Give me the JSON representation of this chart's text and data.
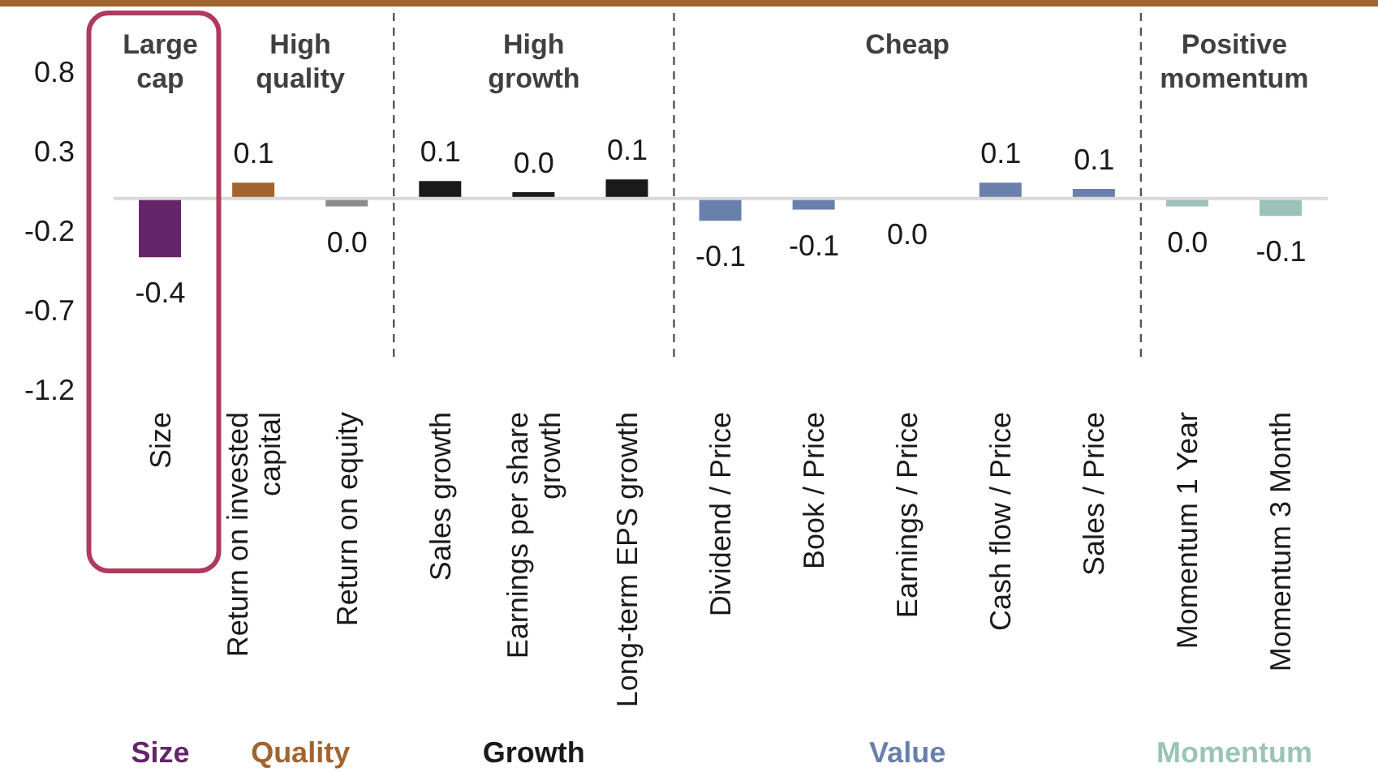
{
  "chart_data": {
    "type": "bar",
    "stacked": true,
    "categories": [
      "Size",
      "Return on invested capital",
      "Return on equity",
      "Sales growth",
      "Earnings per share growth",
      "Long-term EPS growth",
      "Dividend / Price",
      "Book / Price",
      "Earnings / Price",
      "Cash flow / Price",
      "Sales / Price",
      "Momentum 1 Year",
      "Momentum 3 Month"
    ],
    "series": [
      {
        "name": "Size",
        "color": "#66246a",
        "values": [
          -0.37,
          null,
          null,
          null,
          null,
          null,
          null,
          null,
          null,
          null,
          null,
          null,
          null
        ],
        "value_labels": [
          "-0.4",
          null,
          null,
          null,
          null,
          null,
          null,
          null,
          null,
          null,
          null,
          null,
          null
        ]
      },
      {
        "name": "Quality",
        "color": "#a2652f",
        "colors": [
          null,
          "#a2652f",
          "#8c8c8c",
          null,
          null,
          null,
          null,
          null,
          null,
          null,
          null,
          null,
          null
        ],
        "values": [
          null,
          0.1,
          -0.05,
          null,
          null,
          null,
          null,
          null,
          null,
          null,
          null,
          null,
          null
        ],
        "value_labels": [
          null,
          "0.1",
          "0.0",
          null,
          null,
          null,
          null,
          null,
          null,
          null,
          null,
          null,
          null
        ]
      },
      {
        "name": "Growth",
        "color": "#1a1a1a",
        "values": [
          null,
          null,
          null,
          0.11,
          0.04,
          0.12,
          null,
          null,
          null,
          null,
          null,
          null,
          null
        ],
        "value_labels": [
          null,
          null,
          null,
          "0.1",
          "0.0",
          "0.1",
          null,
          null,
          null,
          null,
          null,
          null,
          null
        ]
      },
      {
        "name": "Value",
        "color": "#6a80ac",
        "values": [
          null,
          null,
          null,
          null,
          null,
          null,
          -0.14,
          -0.07,
          0,
          0.1,
          0.06,
          null,
          null
        ],
        "value_labels": [
          null,
          null,
          null,
          null,
          null,
          null,
          "-0.1",
          "-0.1",
          "0.0",
          "0.1",
          "0.1",
          null,
          null
        ]
      },
      {
        "name": "Momentum",
        "color": "#9cc3b9",
        "values": [
          null,
          null,
          null,
          null,
          null,
          null,
          null,
          null,
          null,
          null,
          null,
          -0.05,
          -0.11
        ],
        "value_labels": [
          null,
          null,
          null,
          null,
          null,
          null,
          null,
          null,
          null,
          null,
          null,
          "0.0",
          "-0.1"
        ]
      }
    ],
    "annotations": [
      "Large cap",
      "High quality",
      "High growth",
      "Cheap",
      "Positive momentum"
    ],
    "ylim": [
      -1.2,
      0.8
    ],
    "yticks": [
      0.8,
      0.3,
      -0.2,
      -0.7,
      -1.2
    ],
    "ref_lines": [
      {
        "axis": "y",
        "value": 0,
        "color": "#d9d9d9"
      }
    ],
    "grid": false,
    "legend": "bottom"
  }
}
